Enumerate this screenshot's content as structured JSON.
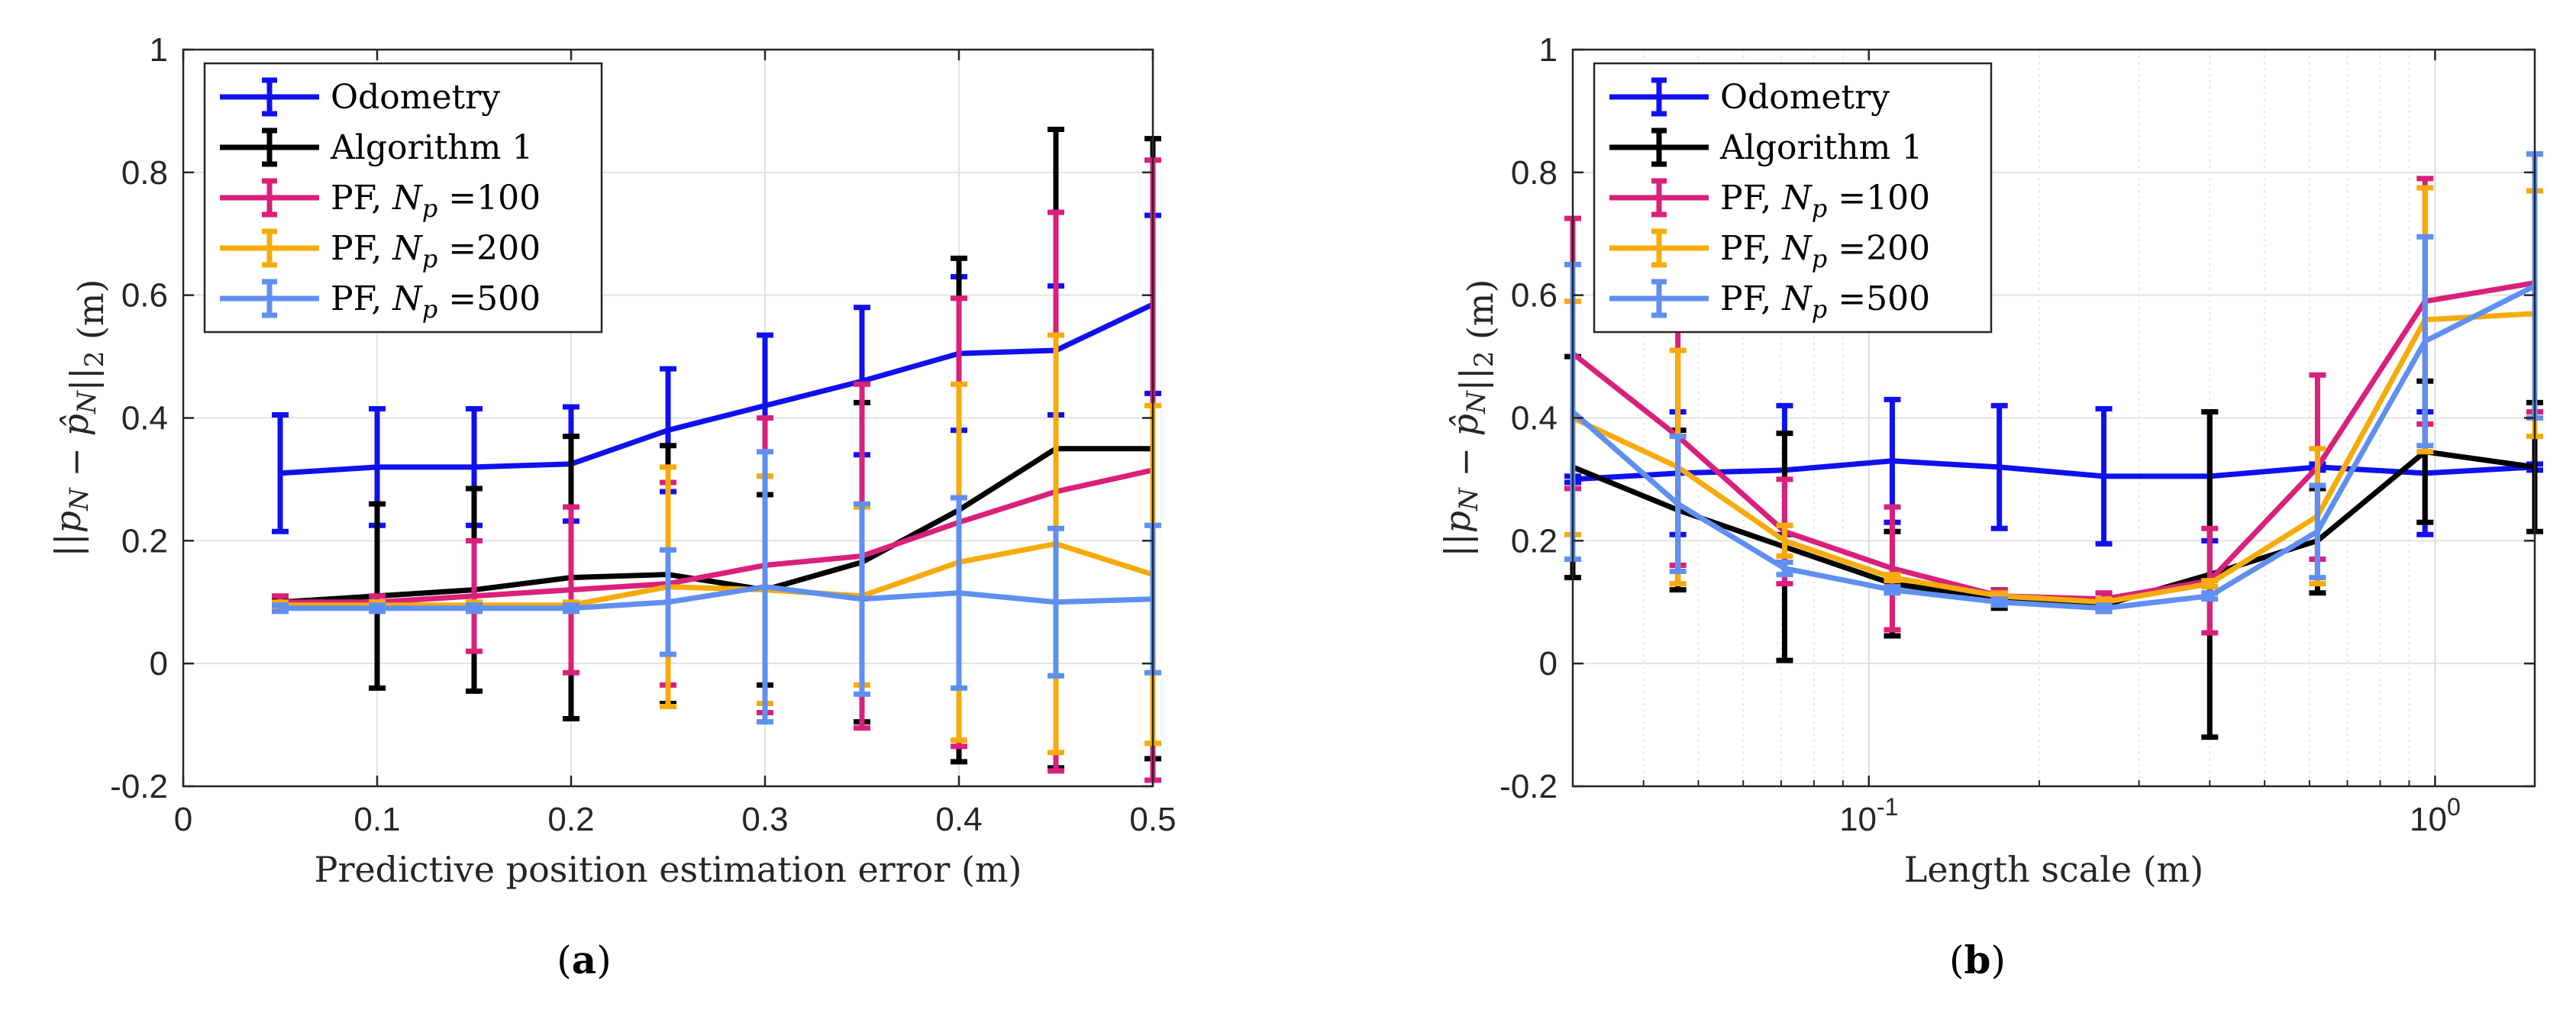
{
  "chart_data": [
    {
      "id": "a",
      "type": "line",
      "panel_label": "(a)",
      "panel_letter": "a",
      "xlabel": "Predictive position estimation error (m)",
      "ylabel": "||p_N − p̂_N||_2 (m)",
      "xscale": "linear",
      "xlim": [
        0,
        0.5
      ],
      "ylim": [
        -0.2,
        1
      ],
      "xticks": [
        0,
        0.1,
        0.2,
        0.3,
        0.4,
        0.5
      ],
      "xtick_labels": [
        "0",
        "0.1",
        "0.2",
        "0.3",
        "0.4",
        "0.5"
      ],
      "yticks": [
        -0.2,
        0,
        0.2,
        0.4,
        0.6,
        0.8,
        1
      ],
      "ytick_labels": [
        "-0.2",
        "0",
        "0.2",
        "0.4",
        "0.6",
        "0.8",
        "1"
      ],
      "grid": true,
      "legend_position": "top-left",
      "x": [
        0.05,
        0.1,
        0.15,
        0.2,
        0.25,
        0.3,
        0.35,
        0.4,
        0.45,
        0.5
      ],
      "series": [
        {
          "name": "Odometry",
          "color": "#1010ee",
          "values": [
            0.31,
            0.32,
            0.32,
            0.325,
            0.38,
            0.42,
            0.46,
            0.505,
            0.51,
            0.585
          ],
          "err": [
            0.095,
            0.095,
            0.095,
            0.093,
            0.1,
            0.115,
            0.12,
            0.125,
            0.105,
            0.145
          ]
        },
        {
          "name": "Algorithm 1",
          "color": "#000000",
          "values": [
            0.1,
            0.11,
            0.12,
            0.14,
            0.145,
            0.12,
            0.165,
            0.25,
            0.35,
            0.35
          ],
          "err": [
            0.005,
            0.15,
            0.165,
            0.23,
            0.21,
            0.155,
            0.26,
            0.41,
            0.52,
            0.505
          ]
        },
        {
          "name": "PF, N_p=100",
          "color": "#d9207a",
          "values": [
            0.1,
            0.1,
            0.11,
            0.12,
            0.13,
            0.16,
            0.175,
            0.23,
            0.28,
            0.315
          ],
          "err": [
            0.01,
            0.01,
            0.09,
            0.135,
            0.165,
            0.24,
            0.28,
            0.365,
            0.455,
            0.505
          ]
        },
        {
          "name": "PF, N_p=200",
          "color": "#f7ab0a",
          "values": [
            0.095,
            0.095,
            0.095,
            0.095,
            0.125,
            0.12,
            0.11,
            0.165,
            0.195,
            0.145
          ],
          "err": [
            0.005,
            0.005,
            0.005,
            0.005,
            0.195,
            0.185,
            0.145,
            0.29,
            0.34,
            0.275
          ]
        },
        {
          "name": "PF, N_p=500",
          "color": "#5f8ff0",
          "values": [
            0.09,
            0.09,
            0.09,
            0.09,
            0.1,
            0.125,
            0.105,
            0.115,
            0.1,
            0.105
          ],
          "err": [
            0.005,
            0.005,
            0.005,
            0.005,
            0.085,
            0.22,
            0.155,
            0.155,
            0.12,
            0.12
          ]
        }
      ]
    },
    {
      "id": "b",
      "type": "line",
      "panel_label": "(b)",
      "panel_letter": "b",
      "xlabel": "Length scale (m)",
      "ylabel": "||p_N − p̂_N||_2 (m)",
      "xscale": "log",
      "xlim": [
        0.03,
        1.5
      ],
      "ylim": [
        -0.2,
        1
      ],
      "xticks": [
        0.1,
        1
      ],
      "xtick_labels": [
        "10",
        "10"
      ],
      "xtick_exponents": [
        "-1",
        "0"
      ],
      "yticks": [
        -0.2,
        0,
        0.2,
        0.4,
        0.6,
        0.8,
        1
      ],
      "ytick_labels": [
        "-0.2",
        "0",
        "0.2",
        "0.4",
        "0.6",
        "0.8",
        "1"
      ],
      "grid": true,
      "legend_position": "top-left",
      "x": [
        0.03,
        0.046,
        0.071,
        0.11,
        0.17,
        0.26,
        0.4,
        0.62,
        0.96,
        1.5
      ],
      "series": [
        {
          "name": "Odometry",
          "color": "#1010ee",
          "values": [
            0.3,
            0.31,
            0.315,
            0.33,
            0.32,
            0.305,
            0.305,
            0.32,
            0.31,
            0.32
          ],
          "err": [
            0.005,
            0.1,
            0.105,
            0.1,
            0.1,
            0.11,
            0.105,
            0.005,
            0.1,
            0.005
          ]
        },
        {
          "name": "Algorithm 1",
          "color": "#000000",
          "values": [
            0.32,
            0.25,
            0.19,
            0.13,
            0.105,
            0.095,
            0.145,
            0.2,
            0.345,
            0.32
          ],
          "err": [
            0.18,
            0.13,
            0.185,
            0.085,
            0.015,
            0.01,
            0.265,
            0.085,
            0.115,
            0.105
          ]
        },
        {
          "name": "PF, N_p=100",
          "color": "#d9207a",
          "values": [
            0.505,
            0.37,
            0.215,
            0.155,
            0.11,
            0.105,
            0.135,
            0.32,
            0.59,
            0.62
          ],
          "err": [
            0.22,
            0.21,
            0.085,
            0.1,
            0.01,
            0.01,
            0.085,
            0.15,
            0.2,
            0.21
          ]
        },
        {
          "name": "PF, N_p=200",
          "color": "#f7ab0a",
          "values": [
            0.4,
            0.32,
            0.2,
            0.14,
            0.11,
            0.1,
            0.13,
            0.24,
            0.56,
            0.57
          ],
          "err": [
            0.19,
            0.19,
            0.025,
            0.005,
            0.005,
            0.005,
            0.005,
            0.11,
            0.215,
            0.2
          ]
        },
        {
          "name": "PF, N_p=500",
          "color": "#5f8ff0",
          "values": [
            0.41,
            0.26,
            0.155,
            0.12,
            0.1,
            0.09,
            0.11,
            0.215,
            0.525,
            0.615
          ],
          "err": [
            0.24,
            0.11,
            0.01,
            0.005,
            0.005,
            0.005,
            0.005,
            0.075,
            0.17,
            0.215
          ]
        }
      ]
    }
  ]
}
